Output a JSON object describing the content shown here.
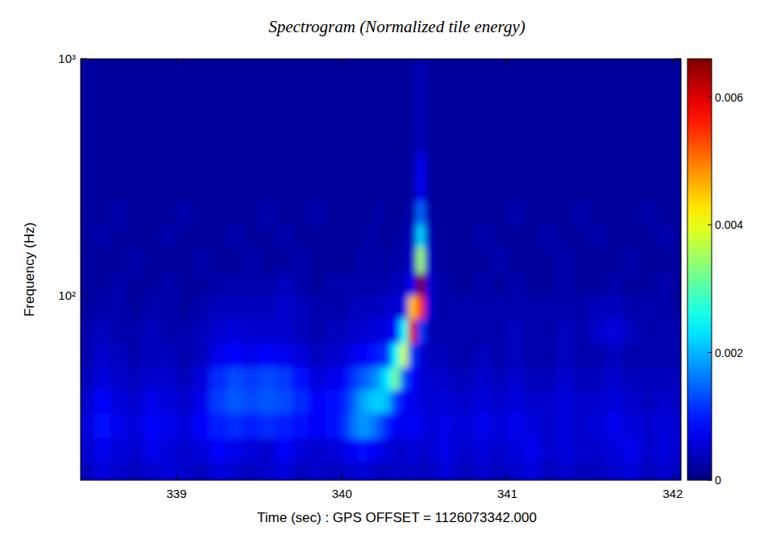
{
  "chart_data": {
    "type": "heatmap",
    "title": "Spectrogram (Normalized tile energy)",
    "x_label": "Time (sec) : GPS OFFSET = 1126073342.000",
    "y_label": "Frequency (Hz)",
    "log": "y",
    "xlim": [
      338.42,
      342.05
    ],
    "ylim": [
      16.6,
      1000
    ],
    "xticks": [
      339,
      340,
      341,
      342
    ],
    "yticks": [
      {
        "value": 100,
        "label": "10²"
      },
      {
        "value": 1000,
        "label": "10³"
      }
    ],
    "colorbar": {
      "range": [
        0,
        0.0066
      ],
      "ticks": [
        0,
        0.002,
        0.004,
        0.006
      ]
    },
    "cells": {
      "x_edges": [
        338.4,
        338.5,
        338.6,
        338.7,
        338.8,
        338.9,
        339.0,
        339.1,
        339.2,
        339.3,
        339.4,
        339.5,
        339.6,
        339.7,
        339.8,
        339.9,
        340.0,
        340.05,
        340.1,
        340.15,
        340.2,
        340.25,
        340.3,
        340.35,
        340.4,
        340.45,
        340.5,
        340.55,
        340.6,
        340.65,
        340.7,
        340.8,
        340.9,
        341.0,
        341.1,
        341.2,
        341.3,
        341.4,
        341.5,
        341.6,
        341.7,
        341.8,
        341.9,
        342.0,
        342.1
      ],
      "y_edges": [
        16,
        20,
        25,
        32,
        40,
        50,
        63,
        80,
        100,
        125,
        160,
        200,
        250,
        400,
        1000
      ],
      "values": [
        [
          0.0004,
          0.0006,
          0.0005,
          0.0004,
          0.0005,
          0.0006,
          0.0005,
          0.0004,
          0.0006,
          0.0005,
          0.0004,
          0.0005,
          0.0006,
          0.0004,
          0.0005,
          0.0004,
          0.0005,
          0.0005,
          0.0006,
          0.0005,
          0.0004,
          0.0004,
          0.0005,
          0.0004,
          0.0005,
          0.0004,
          0.0004,
          0.0005,
          0.0006,
          0.0005,
          0.0004,
          0.0005,
          0.0004,
          0.0005,
          0.0006,
          0.0004,
          0.0005,
          0.0004,
          0.0004,
          0.0005,
          0.0006,
          0.0004,
          0.0005,
          0.0004
        ],
        [
          0.0005,
          0.0007,
          0.0006,
          0.0005,
          0.0007,
          0.0006,
          0.0005,
          0.0006,
          0.0008,
          0.0007,
          0.0006,
          0.0005,
          0.0008,
          0.0006,
          0.0005,
          0.0006,
          0.0007,
          0.0008,
          0.0009,
          0.0008,
          0.0007,
          0.0006,
          0.0005,
          0.0005,
          0.0006,
          0.0005,
          0.0005,
          0.0006,
          0.0007,
          0.0006,
          0.0005,
          0.0006,
          0.0005,
          0.0006,
          0.0007,
          0.0005,
          0.0006,
          0.0005,
          0.0005,
          0.0006,
          0.0007,
          0.0005,
          0.0006,
          0.0005
        ],
        [
          0.0006,
          0.0009,
          0.0007,
          0.0006,
          0.0008,
          0.0007,
          0.0006,
          0.0008,
          0.001,
          0.0011,
          0.001,
          0.0011,
          0.001,
          0.0009,
          0.0008,
          0.0009,
          0.0012,
          0.0016,
          0.0018,
          0.0017,
          0.0014,
          0.001,
          0.0008,
          0.0007,
          0.0008,
          0.0007,
          0.0006,
          0.0006,
          0.0007,
          0.0006,
          0.0006,
          0.0007,
          0.0006,
          0.0007,
          0.0006,
          0.0005,
          0.0006,
          0.0005,
          0.0006,
          0.0007,
          0.0006,
          0.0005,
          0.0006,
          0.0005
        ],
        [
          0.0005,
          0.0008,
          0.0006,
          0.0005,
          0.0007,
          0.0006,
          0.0005,
          0.0007,
          0.0012,
          0.0014,
          0.0013,
          0.0014,
          0.0013,
          0.0011,
          0.0008,
          0.0009,
          0.0011,
          0.0015,
          0.0019,
          0.0021,
          0.0022,
          0.002,
          0.0012,
          0.0008,
          0.0007,
          0.0006,
          0.0005,
          0.0006,
          0.0006,
          0.0005,
          0.0005,
          0.0006,
          0.0005,
          0.0006,
          0.0005,
          0.0005,
          0.0006,
          0.0005,
          0.0005,
          0.0006,
          0.0005,
          0.0004,
          0.0005,
          0.0004
        ],
        [
          0.0004,
          0.0006,
          0.0005,
          0.0004,
          0.0005,
          0.0005,
          0.0004,
          0.0006,
          0.0011,
          0.0013,
          0.0012,
          0.0013,
          0.0012,
          0.0009,
          0.0006,
          0.0007,
          0.0009,
          0.0012,
          0.0014,
          0.0016,
          0.0019,
          0.0024,
          0.0032,
          0.0014,
          0.0008,
          0.0006,
          0.0005,
          0.0005,
          0.0005,
          0.0004,
          0.0004,
          0.0005,
          0.0004,
          0.0005,
          0.0004,
          0.0004,
          0.0005,
          0.0004,
          0.0004,
          0.0005,
          0.0004,
          0.0004,
          0.0004,
          0.0004
        ],
        [
          0.0003,
          0.0005,
          0.0004,
          0.0003,
          0.0004,
          0.0004,
          0.0003,
          0.0004,
          0.0007,
          0.0008,
          0.0007,
          0.0008,
          0.0007,
          0.0006,
          0.0004,
          0.0005,
          0.0006,
          0.0007,
          0.0008,
          0.0009,
          0.001,
          0.0012,
          0.0025,
          0.0038,
          0.0012,
          0.0006,
          0.0004,
          0.0004,
          0.0004,
          0.0003,
          0.0003,
          0.0004,
          0.0003,
          0.0004,
          0.0003,
          0.0003,
          0.0004,
          0.0003,
          0.0003,
          0.0004,
          0.0003,
          0.0003,
          0.0003,
          0.0003
        ],
        [
          0.0003,
          0.0004,
          0.0003,
          0.0003,
          0.0004,
          0.0003,
          0.0003,
          0.0004,
          0.0005,
          0.0006,
          0.0005,
          0.0005,
          0.0005,
          0.0004,
          0.0003,
          0.0004,
          0.0004,
          0.0005,
          0.0005,
          0.0006,
          0.0006,
          0.0007,
          0.0008,
          0.0025,
          0.006,
          0.0012,
          0.0004,
          0.0003,
          0.0003,
          0.0003,
          0.0003,
          0.0003,
          0.0003,
          0.0004,
          0.0003,
          0.0003,
          0.0004,
          0.0003,
          0.0005,
          0.0006,
          0.0004,
          0.0003,
          0.0003,
          0.0003
        ],
        [
          0.0002,
          0.0003,
          0.0003,
          0.0002,
          0.0003,
          0.0003,
          0.0002,
          0.0003,
          0.0004,
          0.0004,
          0.0004,
          0.0004,
          0.0005,
          0.0004,
          0.0003,
          0.0003,
          0.0003,
          0.0004,
          0.0004,
          0.0004,
          0.0004,
          0.0005,
          0.0005,
          0.0007,
          0.0045,
          0.0055,
          0.0006,
          0.0003,
          0.0003,
          0.0003,
          0.0003,
          0.0003,
          0.0003,
          0.0003,
          0.0003,
          0.0003,
          0.0003,
          0.0003,
          0.0004,
          0.0004,
          0.0003,
          0.0003,
          0.0003,
          0.0002
        ],
        [
          0.0002,
          0.0002,
          0.0003,
          0.0002,
          0.0002,
          0.0003,
          0.0002,
          0.0002,
          0.0003,
          0.0003,
          0.0003,
          0.0003,
          0.0004,
          0.0003,
          0.0002,
          0.0003,
          0.0003,
          0.0003,
          0.0003,
          0.0003,
          0.0003,
          0.0003,
          0.0004,
          0.0004,
          0.0008,
          0.0066,
          0.0006,
          0.0003,
          0.0003,
          0.0002,
          0.0002,
          0.0003,
          0.0002,
          0.0003,
          0.0002,
          0.0002,
          0.0003,
          0.0002,
          0.0002,
          0.0003,
          0.0002,
          0.0002,
          0.0003,
          0.0002
        ],
        [
          0.0002,
          0.0002,
          0.0002,
          0.0003,
          0.0002,
          0.0002,
          0.0002,
          0.0003,
          0.0002,
          0.0002,
          0.0003,
          0.0002,
          0.0002,
          0.0003,
          0.0002,
          0.0002,
          0.0002,
          0.0002,
          0.0003,
          0.0002,
          0.0003,
          0.0002,
          0.0003,
          0.0003,
          0.0005,
          0.0035,
          0.0005,
          0.0002,
          0.0002,
          0.0002,
          0.0002,
          0.0002,
          0.0003,
          0.0002,
          0.0002,
          0.0002,
          0.0003,
          0.0002,
          0.0002,
          0.0002,
          0.0003,
          0.0002,
          0.0002,
          0.0002
        ],
        [
          0.0002,
          0.0003,
          0.0002,
          0.0002,
          0.0002,
          0.0003,
          0.0002,
          0.0002,
          0.0002,
          0.0003,
          0.0002,
          0.0002,
          0.0003,
          0.0002,
          0.0002,
          0.0002,
          0.0002,
          0.0002,
          0.0002,
          0.0003,
          0.0002,
          0.0002,
          0.0002,
          0.0003,
          0.0004,
          0.0022,
          0.0004,
          0.0002,
          0.0002,
          0.0002,
          0.0002,
          0.0003,
          0.0002,
          0.0002,
          0.0002,
          0.0003,
          0.0002,
          0.0002,
          0.0003,
          0.0002,
          0.0002,
          0.0002,
          0.0003,
          0.0002
        ],
        [
          0.0002,
          0.0002,
          0.0003,
          0.0002,
          0.0002,
          0.0002,
          0.0003,
          0.0002,
          0.0002,
          0.0002,
          0.0002,
          0.0003,
          0.0002,
          0.0002,
          0.0003,
          0.0002,
          0.0002,
          0.0002,
          0.0002,
          0.0002,
          0.0003,
          0.0002,
          0.0002,
          0.0002,
          0.0003,
          0.0015,
          0.0003,
          0.0002,
          0.0002,
          0.0002,
          0.0002,
          0.0002,
          0.0002,
          0.0003,
          0.0002,
          0.0002,
          0.0002,
          0.0003,
          0.0002,
          0.0002,
          0.0002,
          0.0003,
          0.0002,
          0.0002
        ],
        [
          0.0002,
          0.0002,
          0.0002,
          0.0002,
          0.0002,
          0.0002,
          0.0002,
          0.0002,
          0.0002,
          0.0002,
          0.0002,
          0.0002,
          0.0002,
          0.0002,
          0.0002,
          0.0002,
          0.0002,
          0.0002,
          0.0002,
          0.0002,
          0.0002,
          0.0002,
          0.0002,
          0.0002,
          0.0002,
          0.0008,
          0.0002,
          0.0002,
          0.0002,
          0.0002,
          0.0002,
          0.0002,
          0.0002,
          0.0002,
          0.0002,
          0.0002,
          0.0002,
          0.0002,
          0.0002,
          0.0002,
          0.0002,
          0.0002,
          0.0002,
          0.0002
        ],
        [
          0.0002,
          0.0002,
          0.0002,
          0.0002,
          0.0002,
          0.0002,
          0.0002,
          0.0002,
          0.0002,
          0.0002,
          0.0002,
          0.0002,
          0.0002,
          0.0002,
          0.0002,
          0.0002,
          0.0002,
          0.0002,
          0.0002,
          0.0002,
          0.0002,
          0.0002,
          0.0002,
          0.0002,
          0.0002,
          0.0004,
          0.0002,
          0.0002,
          0.0002,
          0.0002,
          0.0002,
          0.0002,
          0.0002,
          0.0002,
          0.0002,
          0.0002,
          0.0002,
          0.0002,
          0.0002,
          0.0002,
          0.0002,
          0.0002,
          0.0002,
          0.0002
        ]
      ]
    }
  }
}
